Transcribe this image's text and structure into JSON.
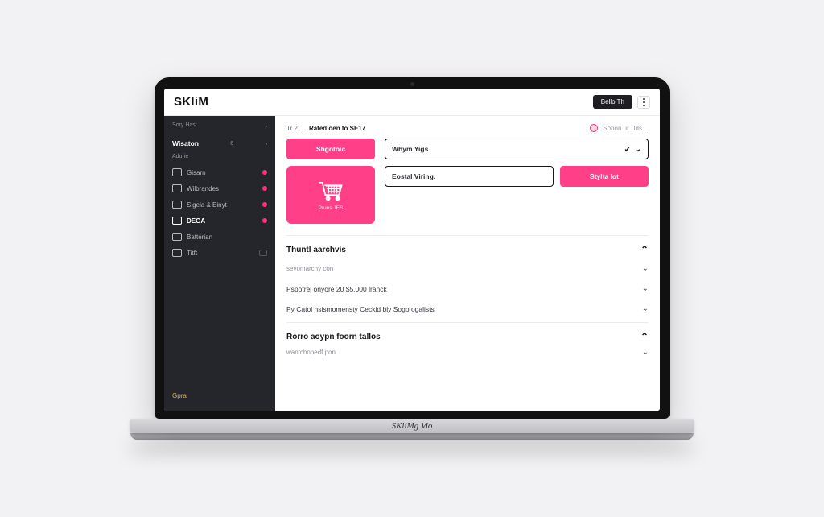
{
  "brand": "SKliM",
  "base_label": "SKliMg Vio",
  "top_button": "Bello Th",
  "colors": {
    "accent": "#ff3f87",
    "sidebar_bg": "#25262c",
    "text_dark": "#17171a",
    "border": "#ececef",
    "gold": "#e1b24b"
  },
  "sidebar": {
    "top_left": "Sory  Hast",
    "section_label": "Wisaton",
    "section_meta": "6",
    "sub_label": "Adurie",
    "items": [
      {
        "label": "Gisarn",
        "dot": true,
        "trail": false
      },
      {
        "label": "Wilbrandes",
        "dot": true,
        "trail": false
      },
      {
        "label": "Sigela & Einyt",
        "dot": true,
        "trail": false
      },
      {
        "label": "DEGA",
        "dot": true,
        "trail": false,
        "active": true
      },
      {
        "label": "Batterian",
        "dot": false,
        "trail": false
      },
      {
        "label": "Titft",
        "dot": false,
        "trail": true
      }
    ],
    "gold": "Gpra"
  },
  "breadcrumb": {
    "lead": "Tr 2…",
    "title": "Rated oen to SE17",
    "user": "Sohon ur",
    "tail": "lds…"
  },
  "hero": {
    "primary_btn": "Shgotoic",
    "cart_caption": "Pruns  JES",
    "field1": "Whym Yigs",
    "field2": "Eostal Viring.",
    "side_btn": "Stylta lot"
  },
  "sections": [
    {
      "title": "Thuntl aarchvis",
      "open": true,
      "rows": [
        {
          "lead": "sevomarchy con",
          "text": ""
        },
        {
          "lead": "",
          "text": "Pspotrel onyore 20  $5,000 lranck"
        },
        {
          "lead": "",
          "text": "Py Catol hsismomensty Ceckid bly Sogo ogalists"
        }
      ]
    },
    {
      "title": "Rorro aoypn foorn tallos",
      "open": true,
      "rows": [
        {
          "lead": "wantchopedf.pon",
          "text": ""
        }
      ]
    }
  ]
}
